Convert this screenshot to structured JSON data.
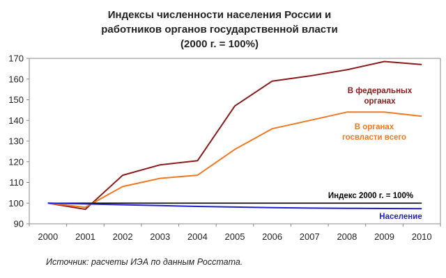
{
  "chart_data": {
    "type": "line",
    "title_lines": [
      "Индексы численности населения России и",
      "работников органов государственной власти",
      "(2000 г. = 100%)"
    ],
    "x": [
      "2000",
      "2001",
      "2002",
      "2003",
      "2004",
      "2005",
      "2006",
      "2007",
      "2008",
      "2009",
      "2010"
    ],
    "ylim": [
      90,
      170
    ],
    "yticks": [
      90,
      100,
      110,
      120,
      130,
      140,
      150,
      160,
      170
    ],
    "grid": false,
    "series": [
      {
        "name_lines": [
          "В федеральных",
          "органах"
        ],
        "color": "#8b1a1a",
        "values": [
          100,
          97,
          113.5,
          118.5,
          120.5,
          147,
          159,
          161.5,
          164.5,
          168.5,
          167
        ]
      },
      {
        "name_lines": [
          "В органах",
          "госвласти всего"
        ],
        "color": "#f07820",
        "values": [
          100,
          98,
          108,
          112,
          113.5,
          126,
          136,
          140,
          144,
          144,
          142
        ]
      },
      {
        "name_lines": [
          "Индекс 2000 г. = 100%"
        ],
        "color": "#000000",
        "values": [
          100,
          100,
          100,
          100,
          100,
          100,
          100,
          100,
          100,
          100,
          100
        ]
      },
      {
        "name_lines": [
          "Население"
        ],
        "color": "#1f1fd0",
        "values": [
          100,
          99.6,
          99.2,
          98.8,
          98.4,
          98.1,
          97.8,
          97.6,
          97.5,
          97.4,
          97.3
        ]
      }
    ]
  },
  "source": "Источник: расчеты ИЭА по данным Росстата."
}
